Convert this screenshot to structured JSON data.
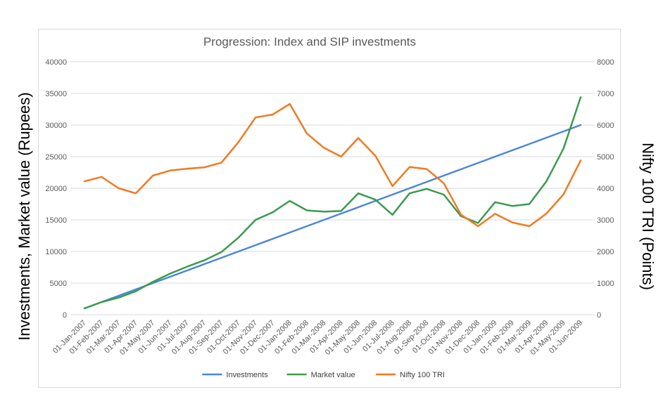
{
  "chart_data": {
    "type": "line",
    "title": "Progression: Index and SIP investments",
    "ylabel": "Investments, Market value (Rupees)",
    "y2label": "Nifty 100 TRI (Points)",
    "ylim": [
      0,
      40000
    ],
    "y2lim": [
      0,
      8000
    ],
    "yticks": [
      0,
      5000,
      10000,
      15000,
      20000,
      25000,
      30000,
      35000,
      40000
    ],
    "y2ticks": [
      0,
      1000,
      2000,
      3000,
      4000,
      5000,
      6000,
      7000,
      8000
    ],
    "grid": true,
    "legend_position": "bottom",
    "categories": [
      "01-Jan-2007",
      "01-Feb-2007",
      "01-Mar-2007",
      "01-Apr-2007",
      "01-May-2007",
      "01-Jun-2007",
      "01-Jul-2007",
      "01-Aug-2007",
      "01-Sep-2007",
      "01-Oct-2007",
      "01-Nov-2007",
      "01-Dec-2007",
      "01-Jan-2008",
      "01-Feb-2008",
      "01-Mar-2008",
      "01-Apr-2008",
      "01-May-2008",
      "01-Jun-2008",
      "01-Jul-2008",
      "01-Aug-2008",
      "01-Sep-2008",
      "01-Oct-2008",
      "01-Nov-2008",
      "01-Dec-2008",
      "01-Jan-2009",
      "01-Feb-2009",
      "01-Mar-2009",
      "01-Apr-2009",
      "01-May-2009",
      "01-Jun-2009"
    ],
    "series": [
      {
        "name": "Investments",
        "axis": "left",
        "color": "#4a86d8",
        "values": [
          1000,
          2000,
          3000,
          4000,
          5000,
          6000,
          7000,
          8000,
          9000,
          10000,
          11000,
          12000,
          13000,
          14000,
          15000,
          16000,
          17000,
          18000,
          19000,
          20000,
          21000,
          22000,
          23000,
          24000,
          25000,
          26000,
          27000,
          28000,
          29000,
          30000
        ]
      },
      {
        "name": "Market value",
        "axis": "left",
        "color": "#3a9b4e",
        "values": [
          1000,
          2000,
          2700,
          3700,
          5200,
          6500,
          7600,
          8600,
          9900,
          12200,
          15000,
          16200,
          18000,
          16500,
          16300,
          16400,
          19200,
          18200,
          15800,
          19200,
          19900,
          19000,
          15600,
          14500,
          17800,
          17200,
          17500,
          21100,
          26300,
          34400
        ]
      },
      {
        "name": "Nifty 100 TRI",
        "axis": "right",
        "color": "#f07a22",
        "values": [
          4220,
          4360,
          4000,
          3840,
          4400,
          4560,
          4620,
          4660,
          4810,
          5460,
          6240,
          6330,
          6670,
          5730,
          5280,
          5000,
          5590,
          5030,
          4070,
          4670,
          4610,
          4160,
          3170,
          2800,
          3190,
          2920,
          2800,
          3200,
          3810,
          4880
        ]
      }
    ]
  }
}
